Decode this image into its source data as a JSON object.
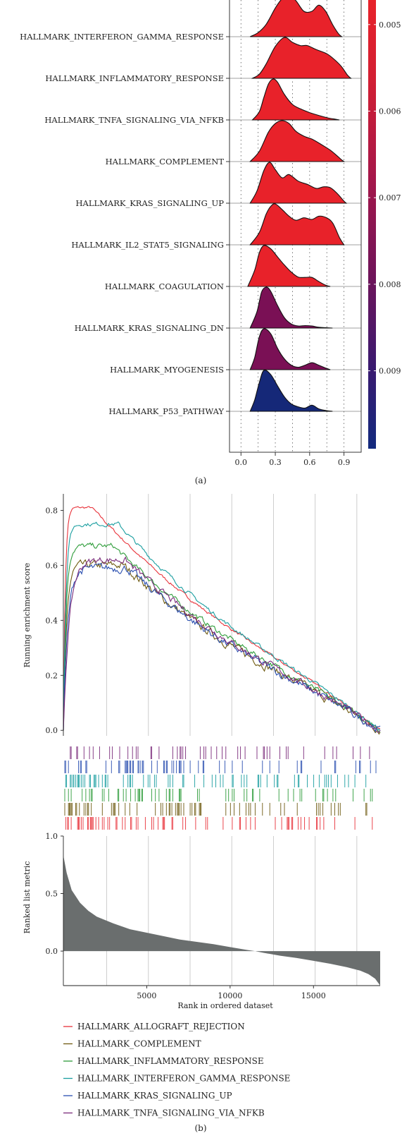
{
  "panel_a": {
    "caption": "(a)",
    "chart_data": {
      "type": "ridgeline",
      "title": "",
      "xlabel": "",
      "ylabel": "",
      "x_ticks": [
        "0.0",
        "0.3",
        "0.6",
        "0.9"
      ],
      "xlim": [
        -0.1,
        1.05
      ],
      "categories": [
        "HALLMARK_INTERFERON_GAMMA_RESPONSE",
        "HALLMARK_INFLAMMATORY_RESPONSE",
        "HALLMARK_TNFA_SIGNALING_VIA_NFKB",
        "HALLMARK_COMPLEMENT",
        "HALLMARK_KRAS_SIGNALING_UP",
        "HALLMARK_IL2_STAT5_SIGNALING",
        "HALLMARK_COAGULATION",
        "HALLMARK_KRAS_SIGNALING_DN",
        "HALLMARK_MYOGENESIS",
        "HALLMARK_P53_PATHWAY"
      ],
      "fill_colors": [
        "#e8222a",
        "#e8222a",
        "#e8222a",
        "#e8222a",
        "#e8222a",
        "#e8222a",
        "#e8222a",
        "#7a1055",
        "#7a1055",
        "#152878"
      ],
      "densities": [
        {
          "x": [
            0.08,
            0.15,
            0.22,
            0.3,
            0.36,
            0.42,
            0.48,
            0.55,
            0.62,
            0.68,
            0.74,
            0.8,
            0.85,
            0.88
          ],
          "y": [
            0,
            0.1,
            0.3,
            0.7,
            0.93,
            1.0,
            0.88,
            0.62,
            0.62,
            0.77,
            0.62,
            0.3,
            0.08,
            0
          ]
        },
        {
          "x": [
            0.1,
            0.16,
            0.22,
            0.3,
            0.38,
            0.45,
            0.52,
            0.58,
            0.66,
            0.75,
            0.82,
            0.88,
            0.93,
            0.96
          ],
          "y": [
            0,
            0.1,
            0.35,
            0.78,
            1.0,
            0.88,
            0.8,
            0.8,
            0.7,
            0.6,
            0.45,
            0.28,
            0.08,
            0
          ]
        },
        {
          "x": [
            0.1,
            0.16,
            0.2,
            0.24,
            0.28,
            0.32,
            0.38,
            0.45,
            0.52,
            0.6,
            0.68,
            0.76,
            0.82,
            0.86
          ],
          "y": [
            0,
            0.2,
            0.55,
            0.88,
            1.0,
            0.92,
            0.62,
            0.38,
            0.27,
            0.18,
            0.11,
            0.05,
            0.02,
            0
          ]
        },
        {
          "x": [
            0.08,
            0.16,
            0.24,
            0.3,
            0.36,
            0.42,
            0.48,
            0.55,
            0.62,
            0.7,
            0.78,
            0.84,
            0.88,
            0.9
          ],
          "y": [
            0,
            0.25,
            0.72,
            0.93,
            1.0,
            0.93,
            0.74,
            0.62,
            0.55,
            0.42,
            0.28,
            0.14,
            0.04,
            0
          ]
        },
        {
          "x": [
            0.08,
            0.14,
            0.2,
            0.25,
            0.3,
            0.36,
            0.42,
            0.5,
            0.58,
            0.66,
            0.72,
            0.78,
            0.84,
            0.9,
            0.92
          ],
          "y": [
            0,
            0.3,
            0.8,
            1.0,
            0.82,
            0.62,
            0.7,
            0.54,
            0.46,
            0.36,
            0.4,
            0.38,
            0.24,
            0.05,
            0
          ]
        },
        {
          "x": [
            0.08,
            0.16,
            0.22,
            0.26,
            0.3,
            0.36,
            0.42,
            0.48,
            0.55,
            0.62,
            0.68,
            0.74,
            0.8,
            0.86,
            0.9
          ],
          "y": [
            0,
            0.3,
            0.75,
            0.94,
            1.0,
            0.86,
            0.7,
            0.6,
            0.66,
            0.62,
            0.7,
            0.67,
            0.54,
            0.18,
            0
          ]
        },
        {
          "x": [
            0.06,
            0.12,
            0.16,
            0.2,
            0.26,
            0.32,
            0.38,
            0.44,
            0.5,
            0.56,
            0.62,
            0.68,
            0.74,
            0.78
          ],
          "y": [
            0,
            0.4,
            0.82,
            1.0,
            0.92,
            0.72,
            0.52,
            0.35,
            0.23,
            0.22,
            0.22,
            0.12,
            0.03,
            0
          ]
        },
        {
          "x": [
            0.08,
            0.14,
            0.18,
            0.22,
            0.26,
            0.32,
            0.38,
            0.44,
            0.5,
            0.56,
            0.62,
            0.68,
            0.74,
            0.8
          ],
          "y": [
            0,
            0.4,
            0.88,
            1.0,
            0.9,
            0.55,
            0.25,
            0.1,
            0.05,
            0.06,
            0.05,
            0.02,
            0.01,
            0
          ]
        },
        {
          "x": [
            0.08,
            0.12,
            0.16,
            0.2,
            0.26,
            0.32,
            0.38,
            0.44,
            0.5,
            0.56,
            0.62,
            0.68,
            0.74,
            0.78
          ],
          "y": [
            0,
            0.3,
            0.8,
            1.0,
            0.88,
            0.52,
            0.26,
            0.11,
            0.06,
            0.11,
            0.17,
            0.11,
            0.04,
            0
          ]
        },
        {
          "x": [
            0.08,
            0.12,
            0.16,
            0.2,
            0.26,
            0.32,
            0.38,
            0.44,
            0.5,
            0.56,
            0.62,
            0.68,
            0.74,
            0.8
          ],
          "y": [
            0,
            0.28,
            0.7,
            1.0,
            0.9,
            0.62,
            0.35,
            0.18,
            0.11,
            0.08,
            0.15,
            0.06,
            0.02,
            0
          ]
        }
      ],
      "colorbar": {
        "ticks": [
          "0.005",
          "0.006",
          "0.007",
          "0.008",
          "0.009"
        ],
        "range": [
          0.0047,
          0.0099
        ]
      }
    }
  },
  "panel_b": {
    "caption": "(b)",
    "chart_data": {
      "type": "line",
      "title": "",
      "ylabel": "Running enrichment score",
      "ylabel2": "Ranked list metric",
      "xlabel": "Rank in ordered dataset",
      "xlim": [
        0,
        19000
      ],
      "ylim": [
        -0.02,
        0.86
      ],
      "ylim2": [
        -0.3,
        1.0
      ],
      "y_ticks": [
        "0.8",
        "0.6",
        "0.4",
        "0.2",
        "0.0"
      ],
      "y2_ticks": [
        "1.0",
        "0.5",
        "0.0"
      ],
      "x_ticks": [
        "5000",
        "10000",
        "15000"
      ],
      "gridlines_x": [
        2600,
        5100,
        7600,
        10100,
        12600,
        15100,
        17600
      ],
      "series": [
        {
          "name": "HALLMARK_ALLOGRAFT_REJECTION",
          "color": "#e8323a",
          "peak": 0.81,
          "peak_x": 1700,
          "rise": 180,
          "jitter": 0.004
        },
        {
          "name": "HALLMARK_COMPLEMENT",
          "color": "#6e5a10",
          "peak": 0.6,
          "peak_x": 3600,
          "rise": 300,
          "jitter": 0.012
        },
        {
          "name": "HALLMARK_INFLAMMATORY_RESPONSE",
          "color": "#2e9c3a",
          "peak": 0.67,
          "peak_x": 3000,
          "rise": 260,
          "jitter": 0.008
        },
        {
          "name": "HALLMARK_INTERFERON_GAMMA_RESPONSE",
          "color": "#1a9ea0",
          "peak": 0.75,
          "peak_x": 3300,
          "rise": 240,
          "jitter": 0.006
        },
        {
          "name": "HALLMARK_KRAS_SIGNALING_UP",
          "color": "#2a4fb0",
          "peak": 0.59,
          "peak_x": 3800,
          "rise": 420,
          "jitter": 0.012
        },
        {
          "name": "HALLMARK_TNFA_SIGNALING_VIA_NFKB",
          "color": "#7a2a7a",
          "peak": 0.62,
          "peak_x": 3700,
          "rise": 560,
          "jitter": 0.01
        }
      ],
      "hit_density": [
        0.42,
        0.3,
        0.26,
        0.4,
        0.28,
        0.25
      ],
      "ranked_metric": {
        "x": [
          0,
          200,
          500,
          1000,
          1500,
          2000,
          3000,
          4000,
          5000,
          6000,
          7000,
          8000,
          9000,
          10000,
          11000,
          11500,
          12000,
          13000,
          14000,
          15000,
          16000,
          17000,
          17800,
          18300,
          18700,
          19000
        ],
        "y": [
          0.83,
          0.68,
          0.53,
          0.42,
          0.35,
          0.3,
          0.24,
          0.19,
          0.16,
          0.13,
          0.1,
          0.08,
          0.06,
          0.035,
          0.01,
          0.0,
          -0.015,
          -0.04,
          -0.06,
          -0.085,
          -0.11,
          -0.14,
          -0.17,
          -0.2,
          -0.24,
          -0.3
        ]
      },
      "legend_placement": "bottom"
    }
  }
}
